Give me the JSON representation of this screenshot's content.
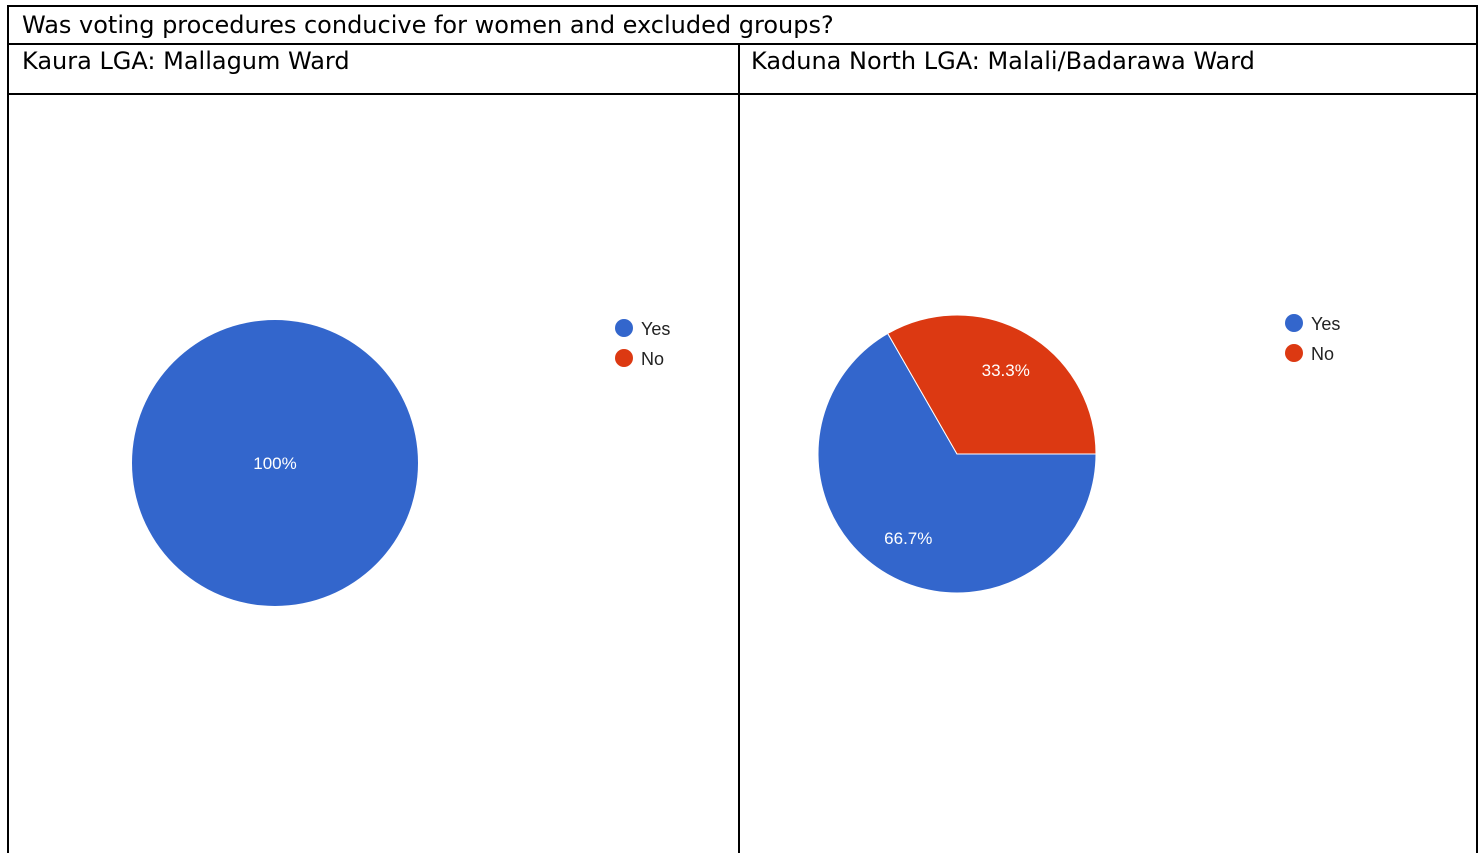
{
  "header": {
    "title": "Was voting procedures conducive for women and excluded groups?"
  },
  "chart_data": [
    {
      "type": "pie",
      "title": "Kaura LGA: Mallagum Ward",
      "categories": [
        "Yes",
        "No"
      ],
      "values": [
        100,
        0
      ],
      "value_labels": [
        "100%",
        null
      ],
      "colors": [
        "#3366cc",
        "#dc3912"
      ],
      "legend": "right"
    },
    {
      "type": "pie",
      "title": "Kaduna North LGA: Malali/Badarawa Ward",
      "categories": [
        "Yes",
        "No"
      ],
      "values": [
        66.7,
        33.3
      ],
      "value_labels": [
        "66.7%",
        "33.3%"
      ],
      "colors": [
        "#3366cc",
        "#dc3912"
      ],
      "legend": "right"
    }
  ]
}
